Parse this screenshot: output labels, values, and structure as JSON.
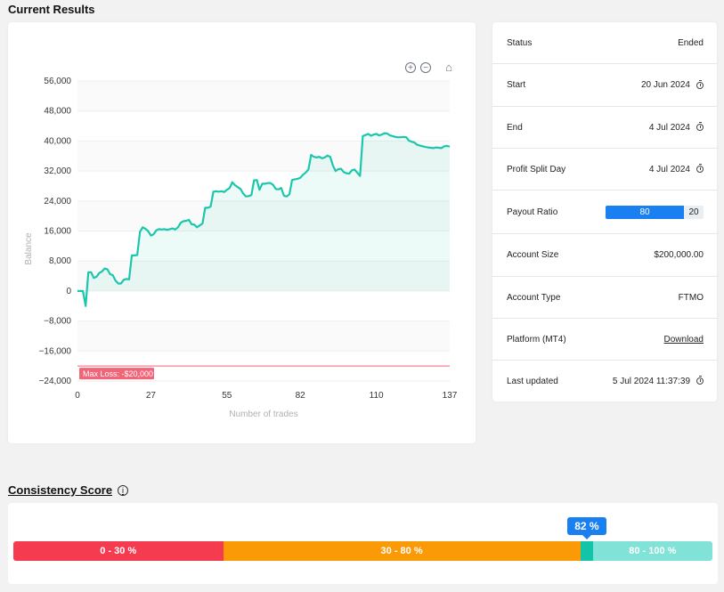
{
  "current_results": {
    "title": "Current Results"
  },
  "chart_data": {
    "type": "area",
    "xlabel": "Number of trades",
    "ylabel": "Balance",
    "xlim": [
      0,
      137
    ],
    "ylim": [
      -24000,
      56000
    ],
    "x_ticks": [
      0,
      27,
      55,
      82,
      110,
      137
    ],
    "y_ticks": [
      56000,
      48000,
      40000,
      32000,
      24000,
      16000,
      8000,
      0,
      -8000,
      -16000,
      -24000
    ],
    "y_tick_labels": [
      "56,000",
      "48,000",
      "40,000",
      "32,000",
      "24,000",
      "16,000",
      "8,000",
      "0",
      "−8,000",
      "−16,000",
      "−24,000"
    ],
    "annotation": {
      "label": "Max Loss: -$20,000",
      "y": -20000
    },
    "series": [
      {
        "values": [
          [
            0,
            0
          ],
          [
            2,
            0
          ],
          [
            3,
            -4000
          ],
          [
            4,
            5000
          ],
          [
            5,
            5000
          ],
          [
            6,
            3500
          ],
          [
            7,
            3800
          ],
          [
            8,
            4800
          ],
          [
            9,
            5200
          ],
          [
            10,
            6000
          ],
          [
            11,
            5800
          ],
          [
            12,
            4500
          ],
          [
            13,
            4200
          ],
          [
            14,
            2800
          ],
          [
            15,
            2000
          ],
          [
            16,
            2000
          ],
          [
            17,
            3000
          ],
          [
            18,
            3200
          ],
          [
            19,
            3100
          ],
          [
            20,
            9500
          ],
          [
            21,
            9500
          ],
          [
            22,
            9600
          ],
          [
            23,
            15800
          ],
          [
            24,
            17000
          ],
          [
            25,
            16600
          ],
          [
            26,
            16000
          ],
          [
            27,
            14800
          ],
          [
            28,
            15100
          ],
          [
            29,
            16200
          ],
          [
            30,
            16500
          ],
          [
            31,
            16400
          ],
          [
            32,
            16500
          ],
          [
            33,
            16300
          ],
          [
            34,
            16500
          ],
          [
            35,
            16700
          ],
          [
            36,
            16400
          ],
          [
            37,
            17000
          ],
          [
            38,
            18200
          ],
          [
            39,
            18600
          ],
          [
            40,
            18700
          ],
          [
            41,
            19000
          ],
          [
            42,
            17800
          ],
          [
            43,
            17700
          ],
          [
            44,
            17000
          ],
          [
            45,
            17500
          ],
          [
            46,
            18000
          ],
          [
            47,
            22200
          ],
          [
            48,
            22200
          ],
          [
            49,
            22500
          ],
          [
            50,
            26500
          ],
          [
            51,
            26600
          ],
          [
            52,
            26500
          ],
          [
            53,
            26600
          ],
          [
            54,
            26400
          ],
          [
            55,
            27000
          ],
          [
            56,
            27500
          ],
          [
            57,
            29000
          ],
          [
            58,
            28200
          ],
          [
            59,
            27700
          ],
          [
            60,
            27200
          ],
          [
            61,
            26000
          ],
          [
            62,
            25200
          ],
          [
            63,
            25300
          ],
          [
            64,
            25600
          ],
          [
            65,
            29500
          ],
          [
            66,
            29600
          ],
          [
            67,
            27000
          ],
          [
            68,
            28600
          ],
          [
            69,
            28600
          ],
          [
            70,
            28800
          ],
          [
            71,
            28800
          ],
          [
            72,
            28300
          ],
          [
            73,
            27200
          ],
          [
            74,
            27100
          ],
          [
            75,
            27500
          ],
          [
            76,
            25400
          ],
          [
            77,
            25200
          ],
          [
            78,
            25800
          ],
          [
            79,
            29600
          ],
          [
            80,
            29800
          ],
          [
            81,
            29900
          ],
          [
            82,
            30200
          ],
          [
            83,
            31000
          ],
          [
            84,
            31600
          ],
          [
            85,
            32400
          ],
          [
            86,
            36300
          ],
          [
            87,
            35800
          ],
          [
            88,
            35600
          ],
          [
            89,
            35800
          ],
          [
            90,
            35400
          ],
          [
            91,
            35600
          ],
          [
            92,
            36100
          ],
          [
            93,
            35800
          ],
          [
            94,
            33500
          ],
          [
            95,
            32000
          ],
          [
            96,
            32500
          ],
          [
            97,
            32600
          ],
          [
            98,
            31700
          ],
          [
            99,
            31400
          ],
          [
            100,
            31300
          ],
          [
            101,
            32200
          ],
          [
            102,
            32400
          ],
          [
            103,
            31500
          ],
          [
            104,
            30700
          ],
          [
            105,
            41300
          ],
          [
            106,
            41600
          ],
          [
            107,
            41900
          ],
          [
            108,
            41400
          ],
          [
            109,
            41700
          ],
          [
            110,
            41900
          ],
          [
            111,
            41500
          ],
          [
            112,
            41700
          ],
          [
            113,
            42100
          ],
          [
            114,
            42000
          ],
          [
            115,
            41500
          ],
          [
            116,
            41300
          ],
          [
            117,
            41100
          ],
          [
            118,
            41000
          ],
          [
            119,
            41000
          ],
          [
            120,
            41100
          ],
          [
            121,
            41000
          ],
          [
            122,
            40100
          ],
          [
            123,
            39800
          ],
          [
            124,
            39600
          ],
          [
            125,
            39000
          ],
          [
            126,
            38800
          ],
          [
            127,
            38600
          ],
          [
            128,
            38400
          ],
          [
            129,
            38300
          ],
          [
            130,
            38200
          ],
          [
            131,
            38100
          ],
          [
            132,
            38300
          ],
          [
            133,
            38200
          ],
          [
            134,
            38100
          ],
          [
            135,
            38600
          ],
          [
            136,
            38700
          ],
          [
            137,
            38500
          ]
        ],
        "color": "#1bc7ac"
      }
    ],
    "grid": true,
    "legend": "none"
  },
  "toolbar": {
    "zoom_in": "+",
    "zoom_out": "−",
    "home": "⌂"
  },
  "info": {
    "rows": [
      {
        "label": "Status",
        "value": "Ended"
      },
      {
        "label": "Start",
        "value": "20 Jun 2024"
      },
      {
        "label": "End",
        "value": "4 Jul 2024"
      },
      {
        "label": "Profit Split Day",
        "value": "4 Jul 2024"
      },
      {
        "label": "Payout Ratio",
        "value_main": "80",
        "value_rest": "20"
      },
      {
        "label": "Account Size",
        "value": "$200,000.00"
      },
      {
        "label": "Account Type",
        "value": "FTMO"
      },
      {
        "label": "Platform (MT4)",
        "value": "Download"
      },
      {
        "label": "Last updated",
        "value": "5 Jul 2024 11:37:39"
      }
    ],
    "payout_ratio": 80
  },
  "consistency": {
    "title": "Consistency Score",
    "info_icon": "i",
    "score_label": "82 %",
    "score": 82,
    "segments": [
      {
        "label": "0 - 30 %",
        "from": 0,
        "to": 30,
        "color": "#f43b50"
      },
      {
        "label": "30 - 80 %",
        "from": 30,
        "to": 80,
        "color": "#fb9a07"
      },
      {
        "label": "80 - 100 %",
        "from": 80,
        "to": 100,
        "color": "#81e2d8"
      }
    ]
  }
}
